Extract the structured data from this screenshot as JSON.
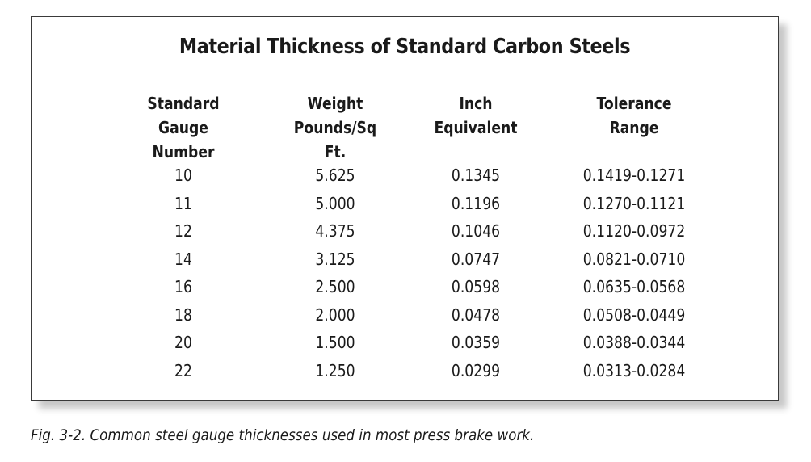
{
  "table": {
    "title": "Material Thickness of Standard Carbon Steels",
    "headers": [
      "Standard\nGauge Number",
      "Weight\nPounds/Sq Ft.",
      "Inch\nEquivalent",
      "Tolerance\nRange"
    ],
    "rows": [
      [
        "10",
        "5.625",
        "0.1345",
        "0.1419-0.1271"
      ],
      [
        "11",
        "5.000",
        "0.1196",
        "0.1270-0.1121"
      ],
      [
        "12",
        "4.375",
        "0.1046",
        "0.1120-0.0972"
      ],
      [
        "14",
        "3.125",
        "0.0747",
        "0.0821-0.0710"
      ],
      [
        "16",
        "2.500",
        "0.0598",
        "0.0635-0.0568"
      ],
      [
        "18",
        "2.000",
        "0.0478",
        "0.0508-0.0449"
      ],
      [
        "20",
        "1.500",
        "0.0359",
        "0.0388-0.0344"
      ],
      [
        "22",
        "1.250",
        "0.0299",
        "0.0313-0.0284"
      ]
    ]
  },
  "caption": "Fig. 3-2. Common steel gauge thicknesses used in most press brake work."
}
